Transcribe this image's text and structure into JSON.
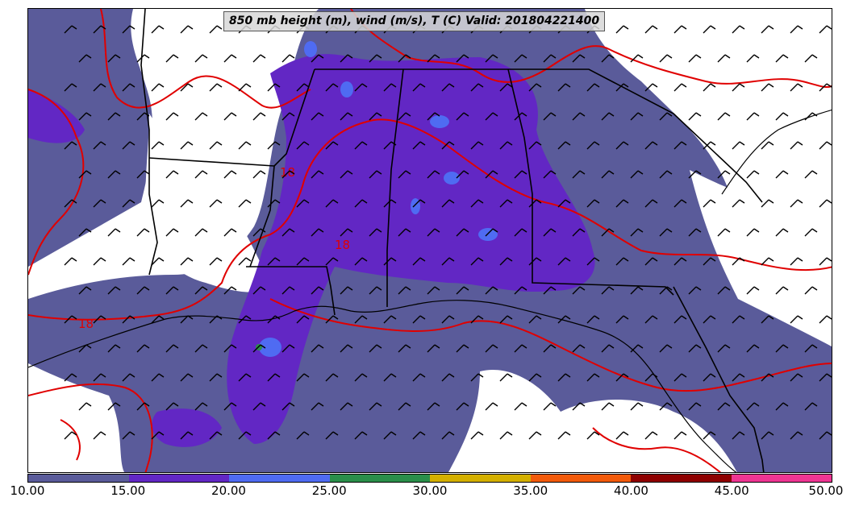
{
  "title": "850 mb height (m), wind (m/s), T (C) Valid: 201804221400",
  "contour_labels": [
    "18",
    "18",
    "18"
  ],
  "colorbar": {
    "ticks": [
      "10.00",
      "15.00",
      "20.00",
      "25.00",
      "30.00",
      "35.00",
      "40.00",
      "45.00",
      "50.00"
    ],
    "colors": [
      "#5a5b9a",
      "#6227c4",
      "#4f6bf2",
      "#2a8f4a",
      "#d4b000",
      "#f25a0a",
      "#8e0000",
      "#ee3592"
    ]
  },
  "palette": {
    "background": "#ffffff",
    "isotherm": "#e00000",
    "border": "#000000"
  }
}
